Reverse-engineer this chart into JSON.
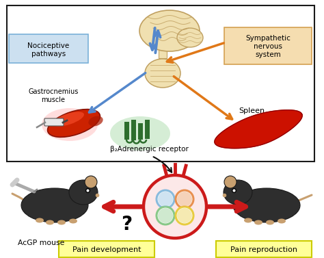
{
  "bg_color": "#ffffff",
  "box_color": "#1a1a1a",
  "nociceptive_label": "Nociceptive\npathways",
  "nociceptive_box_color": "#cce0f0",
  "nociceptive_border": "#7ab0d8",
  "sympathetic_label": "Sympathetic\nnervous\nsystem",
  "sympathetic_box_color": "#f5ddb0",
  "sympathetic_border": "#d4a050",
  "gastrocnemius_label": "Gastrocnemius\nmuscle",
  "spleen_label": "Spleen",
  "receptor_label": "Adrenergic receptor",
  "receptor_beta": "β₂",
  "acgp_label": "AcGP mouse",
  "pain_dev_label": "Pain development",
  "pain_rep_label": "Pain reproduction",
  "question_mark": "?",
  "arrow_blue_color": "#5588cc",
  "arrow_orange_color": "#e07818",
  "arrow_red_color": "#cc1a1a",
  "cell_fill": "#fce8e8",
  "cell_border": "#cc1a1a",
  "receptor_bg": "#c8e8c8",
  "receptor_green": "#2d6e2d",
  "muscle_red": "#cc2200",
  "spleen_red": "#cc1100",
  "pain_box_yellow": "#ffff99",
  "pain_box_border": "#cccc00",
  "bubble_colors": [
    "#88bbdd",
    "#e89050",
    "#88c888",
    "#e8cc40"
  ],
  "brain_color": "#f0e0b0",
  "brain_border": "#c0a060",
  "mouse_body": "#2a2a2a",
  "mouse_ear": "#c8a070",
  "mouse_nose": "#cc8855"
}
